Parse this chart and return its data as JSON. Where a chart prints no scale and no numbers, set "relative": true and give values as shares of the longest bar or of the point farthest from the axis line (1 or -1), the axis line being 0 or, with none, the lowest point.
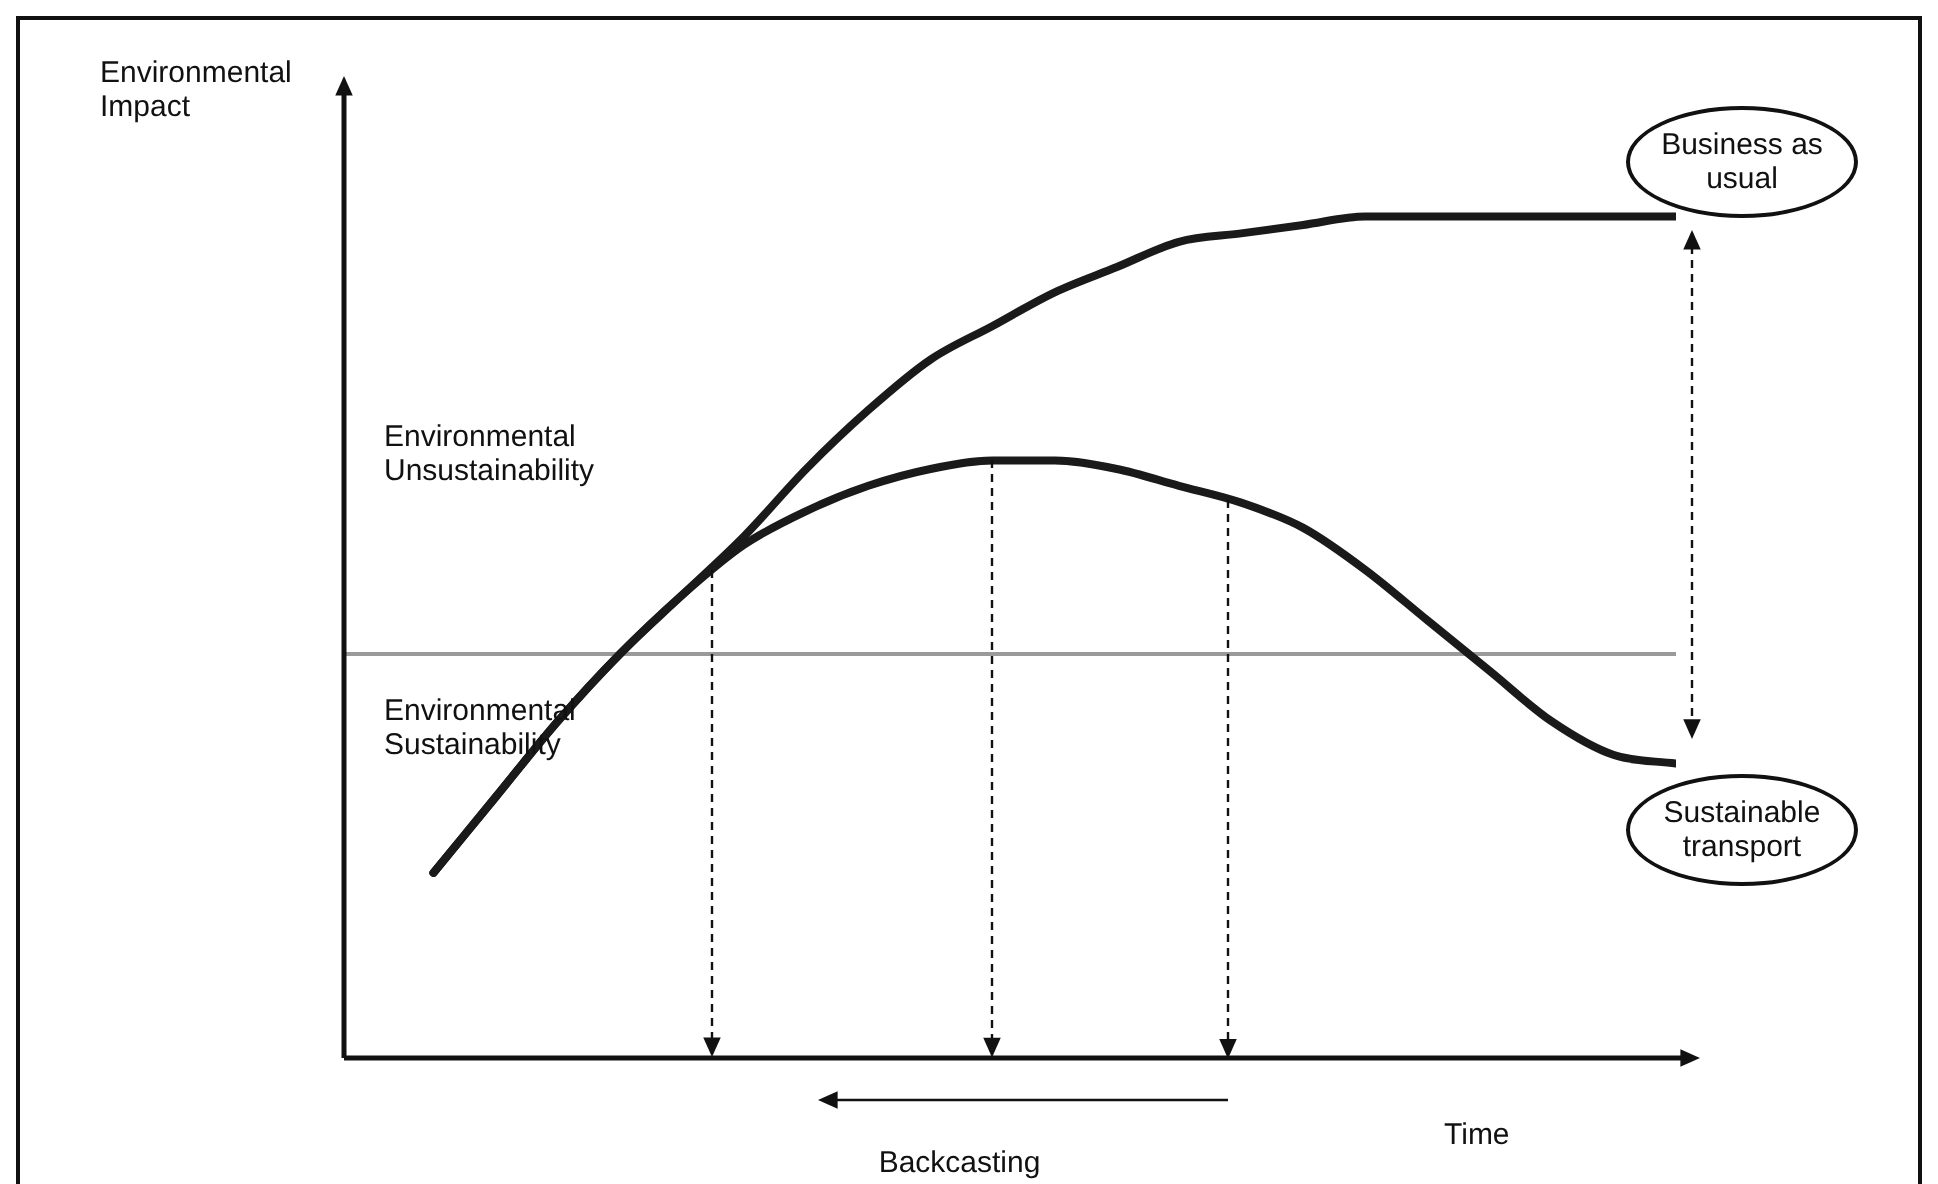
{
  "chart_data": {
    "type": "line",
    "relative": true,
    "ylabel": "Environmental Impact",
    "xlabel": "Time",
    "categories": [
      null,
      null,
      null,
      null,
      null,
      null,
      null,
      null,
      null,
      null,
      null,
      null,
      null,
      null,
      null,
      null,
      null,
      null,
      null,
      null,
      null
    ],
    "series": [
      {
        "name": "Business as usual",
        "color": "#1a1a1a",
        "values": [
          0.22,
          0.31,
          0.4,
          0.48,
          0.55,
          0.62,
          0.7,
          0.77,
          0.83,
          0.87,
          0.91,
          0.94,
          0.97,
          0.98,
          0.99,
          1.0,
          1.0,
          1.0,
          1.0,
          1.0,
          1.0
        ]
      },
      {
        "name": "Sustainable transport",
        "color": "#1a1a1a",
        "values": [
          0.22,
          0.31,
          0.4,
          0.48,
          0.55,
          0.61,
          0.65,
          0.68,
          0.7,
          0.71,
          0.71,
          0.7,
          0.68,
          0.66,
          0.63,
          0.58,
          0.52,
          0.46,
          0.4,
          0.36,
          0.35
        ]
      }
    ],
    "ref_lines": [
      {
        "axis": "y",
        "value": 0.48,
        "color": "#9a9a9a"
      }
    ],
    "annotations": [
      "Environmental Unsustainability",
      "Environmental Sustainability",
      "Backcasting"
    ],
    "legend": "right",
    "marker": "none",
    "line_style": "solid"
  }
}
